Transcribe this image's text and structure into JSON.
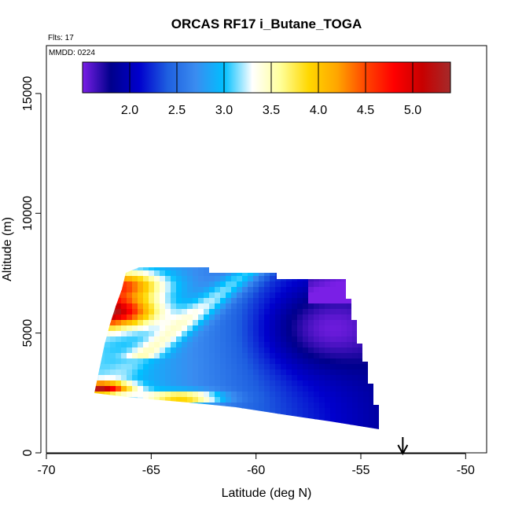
{
  "chart_data": {
    "type": "heatmap",
    "title": "ORCAS RF17 i_Butane_TOGA",
    "flights_label": "Flts: 17",
    "date_label": "MMDD: 0224",
    "xlabel": "Latitude (deg N)",
    "ylabel": "Altitude (m)",
    "xlim": [
      -70,
      -49
    ],
    "ylim": [
      0,
      17000
    ],
    "x_ticks": [
      -70,
      -65,
      -60,
      -55,
      -50
    ],
    "y_ticks": [
      0,
      5000,
      10000,
      15000
    ],
    "colorbar": {
      "range": [
        1.5,
        5.4
      ],
      "ticks": [
        2.0,
        2.5,
        3.0,
        3.5,
        4.0,
        4.5,
        5.0
      ],
      "tick_labels": [
        "2.0",
        "2.5",
        "3.0",
        "3.5",
        "4.0",
        "4.5",
        "5.0"
      ],
      "colors": [
        "#7a1fe6",
        "#00008b",
        "#0000cd",
        "#1e5fe0",
        "#3a8cf0",
        "#00bfff",
        "#ffffff",
        "#ffff99",
        "#ffd700",
        "#ffa500",
        "#ff4500",
        "#ff0000",
        "#c80000",
        "#a52a2a"
      ]
    },
    "marker": {
      "type": "arrow-down",
      "latitude": -53
    }
  }
}
